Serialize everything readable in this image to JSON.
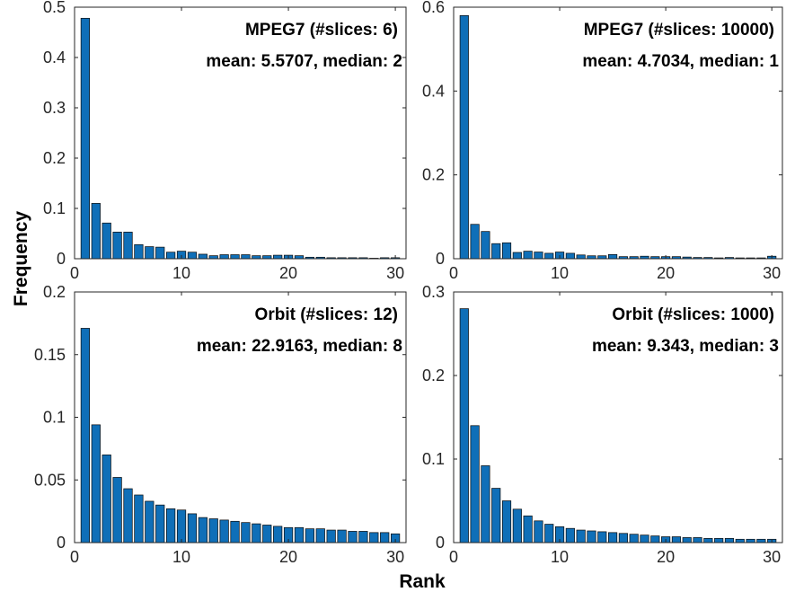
{
  "figure": {
    "xlabel": "Rank",
    "ylabel": "Frequency"
  },
  "chart_data": [
    {
      "type": "bar",
      "title": "MPEG7 (#slices: 6)",
      "subtitle": "mean: 5.5707, median: 2",
      "xlim": [
        0,
        31
      ],
      "ylim": [
        0,
        0.5
      ],
      "xticks": [
        "0",
        "10",
        "20",
        "30"
      ],
      "yticks": [
        "0",
        "0.1",
        "0.2",
        "0.3",
        "0.4",
        "0.5"
      ],
      "x": [
        1,
        2,
        3,
        4,
        5,
        6,
        7,
        8,
        9,
        10,
        11,
        12,
        13,
        14,
        15,
        16,
        17,
        18,
        19,
        20,
        21,
        22,
        23,
        24,
        25,
        26,
        27,
        28,
        29,
        30
      ],
      "values": [
        0.478,
        0.11,
        0.071,
        0.053,
        0.053,
        0.028,
        0.024,
        0.023,
        0.013,
        0.015,
        0.013,
        0.009,
        0.006,
        0.008,
        0.008,
        0.008,
        0.006,
        0.006,
        0.007,
        0.007,
        0.006,
        0.003,
        0.003,
        0.002,
        0.002,
        0.002,
        0.002,
        0.001,
        0.002,
        0.002
      ],
      "color": "#0F6FB8"
    },
    {
      "type": "bar",
      "title": "MPEG7 (#slices: 10000)",
      "subtitle": "mean: 4.7034, median: 1",
      "xlim": [
        0,
        31
      ],
      "ylim": [
        0,
        0.6
      ],
      "xticks": [
        "0",
        "10",
        "20",
        "30"
      ],
      "yticks": [
        "0",
        "0.2",
        "0.4",
        "0.6"
      ],
      "x": [
        1,
        2,
        3,
        4,
        5,
        6,
        7,
        8,
        9,
        10,
        11,
        12,
        13,
        14,
        15,
        16,
        17,
        18,
        19,
        20,
        21,
        22,
        23,
        24,
        25,
        26,
        27,
        28,
        29,
        30
      ],
      "values": [
        0.58,
        0.082,
        0.065,
        0.036,
        0.038,
        0.015,
        0.018,
        0.016,
        0.013,
        0.016,
        0.013,
        0.009,
        0.007,
        0.007,
        0.01,
        0.005,
        0.005,
        0.006,
        0.005,
        0.005,
        0.005,
        0.004,
        0.003,
        0.003,
        0.002,
        0.003,
        0.002,
        0.002,
        0.002,
        0.006
      ],
      "color": "#0F6FB8"
    },
    {
      "type": "bar",
      "title": "Orbit (#slices: 12)",
      "subtitle": "mean: 22.9163, median: 8",
      "xlim": [
        0,
        31
      ],
      "ylim": [
        0,
        0.2
      ],
      "xticks": [
        "0",
        "10",
        "20",
        "30"
      ],
      "yticks": [
        "0",
        "0.05",
        "0.1",
        "0.15",
        "0.2"
      ],
      "x": [
        1,
        2,
        3,
        4,
        5,
        6,
        7,
        8,
        9,
        10,
        11,
        12,
        13,
        14,
        15,
        16,
        17,
        18,
        19,
        20,
        21,
        22,
        23,
        24,
        25,
        26,
        27,
        28,
        29,
        30
      ],
      "values": [
        0.171,
        0.094,
        0.07,
        0.052,
        0.043,
        0.038,
        0.033,
        0.03,
        0.027,
        0.026,
        0.023,
        0.02,
        0.019,
        0.018,
        0.017,
        0.016,
        0.015,
        0.014,
        0.013,
        0.012,
        0.012,
        0.011,
        0.011,
        0.01,
        0.01,
        0.009,
        0.009,
        0.008,
        0.008,
        0.007
      ],
      "color": "#0F6FB8"
    },
    {
      "type": "bar",
      "title": "Orbit (#slices: 1000)",
      "subtitle": "mean: 9.343, median: 3",
      "xlim": [
        0,
        31
      ],
      "ylim": [
        0,
        0.3
      ],
      "xticks": [
        "0",
        "10",
        "20",
        "30"
      ],
      "yticks": [
        "0",
        "0.1",
        "0.2",
        "0.3"
      ],
      "x": [
        1,
        2,
        3,
        4,
        5,
        6,
        7,
        8,
        9,
        10,
        11,
        12,
        13,
        14,
        15,
        16,
        17,
        18,
        19,
        20,
        21,
        22,
        23,
        24,
        25,
        26,
        27,
        28,
        29,
        30
      ],
      "values": [
        0.28,
        0.14,
        0.092,
        0.065,
        0.05,
        0.04,
        0.032,
        0.026,
        0.022,
        0.019,
        0.017,
        0.015,
        0.014,
        0.013,
        0.012,
        0.011,
        0.01,
        0.009,
        0.008,
        0.007,
        0.007,
        0.006,
        0.006,
        0.005,
        0.005,
        0.005,
        0.004,
        0.004,
        0.004,
        0.004
      ],
      "color": "#0F6FB8"
    }
  ]
}
